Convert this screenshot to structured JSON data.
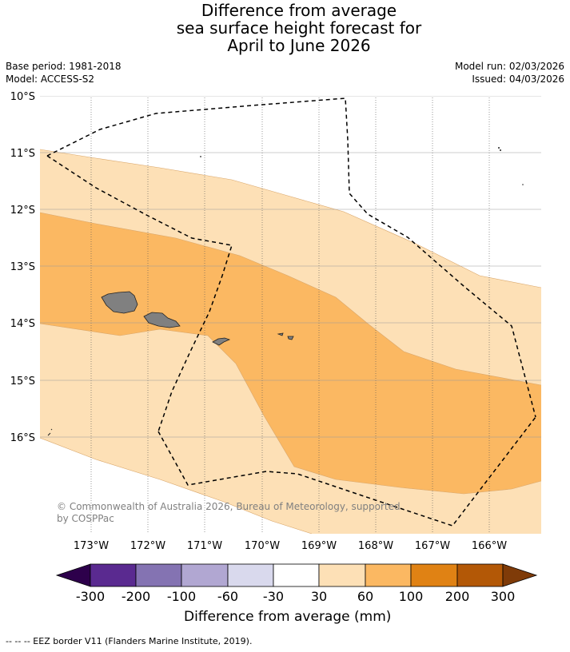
{
  "title": {
    "line1": "Difference from average",
    "line2": "sea surface height forecast for",
    "line3": "April to June 2026"
  },
  "meta": {
    "base_period": "Base period: 1981-2018",
    "model": "Model: ACCESS-S2",
    "model_run": "Model run: 02/03/2026",
    "issued": "Issued: 04/03/2026"
  },
  "map": {
    "lat_labels": [
      "10°S",
      "11°S",
      "12°S",
      "13°S",
      "14°S",
      "15°S",
      "16°S"
    ],
    "lon_labels": [
      "173°W",
      "172°W",
      "171°W",
      "170°W",
      "169°W",
      "168°W",
      "167°W",
      "166°W"
    ],
    "copyright_line1": "© Commonwealth of Australia 2026, Bureau of Meteorology, supported",
    "copyright_line2": "by COSPPac",
    "colors": {
      "band_30_60": "#fde0b6",
      "band_60_100": "#fbb862",
      "land": "#808080"
    }
  },
  "colorbar": {
    "ticks": [
      "-300",
      "-200",
      "-100",
      "-60",
      "-30",
      "30",
      "60",
      "100",
      "200",
      "300"
    ],
    "colors": [
      "#5a2a90",
      "#8473b2",
      "#b1a7d2",
      "#d9d9ed",
      "#ffffff",
      "#fde0b6",
      "#fbb862",
      "#e08214",
      "#b35806"
    ],
    "under_color": "#2d004b",
    "over_color": "#7f3b08",
    "label": "Difference from average (mm)"
  },
  "footnote": "--  --  -- EEZ border V11 (Flanders Marine Institute, 2019)."
}
